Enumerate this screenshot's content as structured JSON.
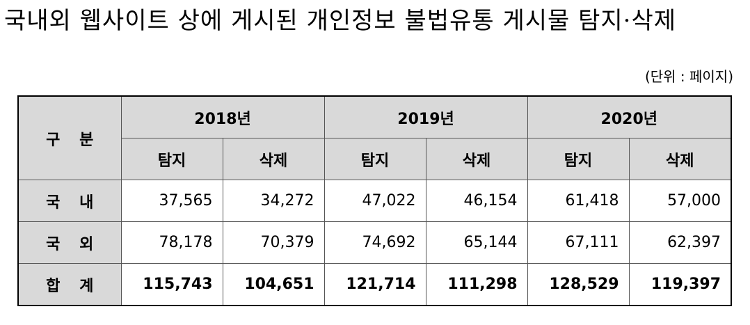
{
  "title": "국내외 웹사이트 상에 게시된 개인정보 불법유통 게시물 탐지·삭제",
  "unit": "(단위 : 페이지)",
  "table": {
    "corner": "구 분",
    "years": [
      "2018년",
      "2019년",
      "2020년"
    ],
    "subheaders": [
      "탐지",
      "삭제",
      "탐지",
      "삭제",
      "탐지",
      "삭제"
    ],
    "rows": [
      {
        "label": "국 내",
        "values": [
          "37,565",
          "34,272",
          "47,022",
          "46,154",
          "61,418",
          "57,000"
        ]
      },
      {
        "label": "국 외",
        "values": [
          "78,178",
          "70,379",
          "74,692",
          "65,144",
          "67,111",
          "62,397"
        ]
      },
      {
        "label": "합 계",
        "values": [
          "115,743",
          "104,651",
          "121,714",
          "111,298",
          "128,529",
          "119,397"
        ]
      }
    ]
  }
}
